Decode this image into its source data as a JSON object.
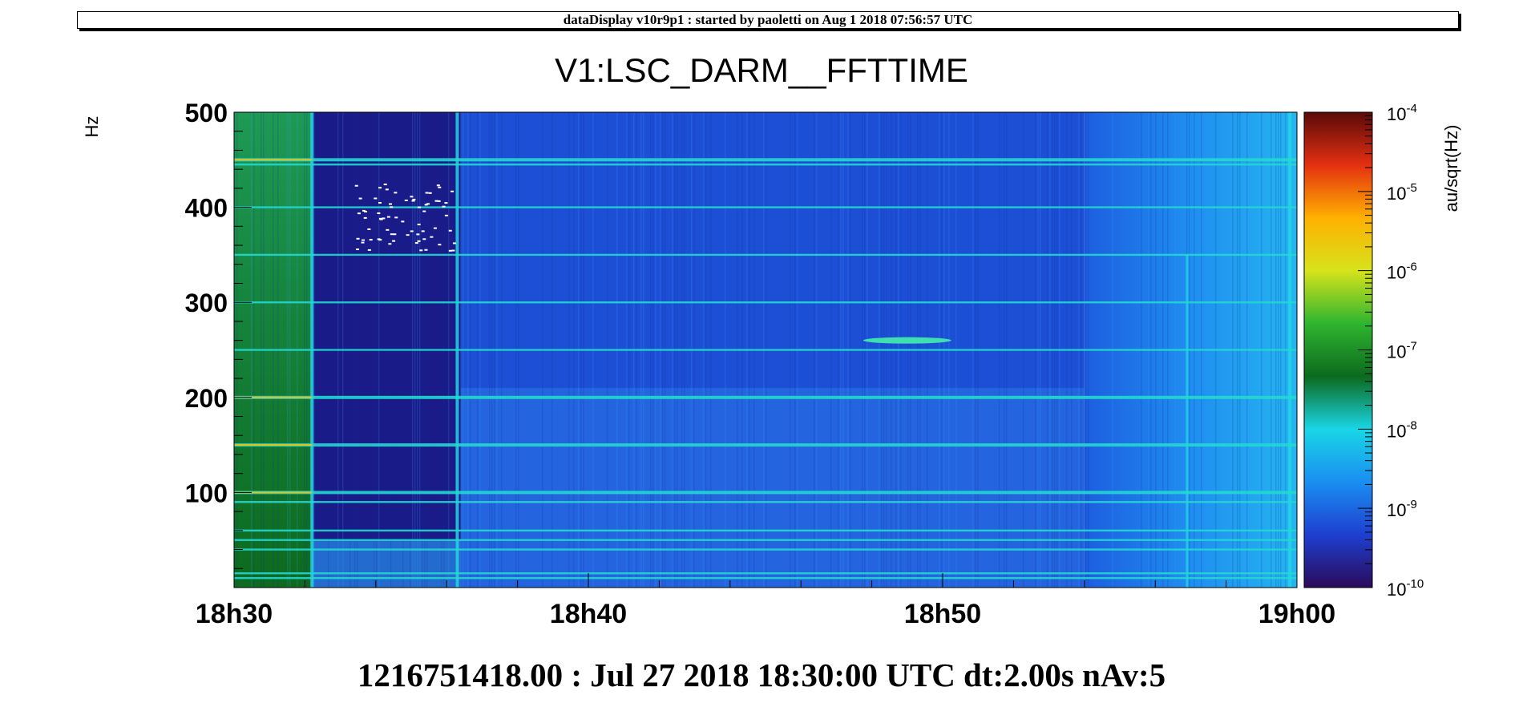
{
  "header": {
    "banner": "dataDisplay v10r9p1 : started by paoletti on Aug  1 2018 07:56:57 UTC"
  },
  "footer": {
    "info": "1216751418.00 : Jul 27 2018 18:30:00 UTC dt:2.00s nAv:5"
  },
  "chart_data": {
    "type": "heatmap",
    "title": "V1:LSC_DARM__FFTTIME",
    "xlabel": "",
    "ylabel": "Hz",
    "zlabel": "au/sqrt(Hz)",
    "x_ticks": [
      "18h30",
      "18h40",
      "18h50",
      "19h00"
    ],
    "x_tick_minutes": [
      0,
      10,
      20,
      30
    ],
    "xlim_minutes": [
      0,
      30
    ],
    "y_ticks": [
      100,
      200,
      300,
      400,
      500
    ],
    "ylim": [
      0,
      500
    ],
    "z_scale": "log",
    "z_ticks": [
      "10^-10",
      "10^-9",
      "10^-8",
      "10^-7",
      "10^-6",
      "10^-5",
      "10^-4"
    ],
    "z_exponents": [
      -10,
      -9,
      -8,
      -7,
      -6,
      -5,
      -4
    ],
    "colormap": [
      "#2b0a5a",
      "#1e3fd0",
      "#1a8ef0",
      "#19d6e6",
      "#0c6a1e",
      "#2fb52f",
      "#d7e31c",
      "#ffb000",
      "#e43010",
      "#5a0a0a"
    ],
    "time_segments_minutes": [
      {
        "start": 0,
        "end": 2.2,
        "level": "green"
      },
      {
        "start": 2.2,
        "end": 6.4,
        "level": "dark-blue"
      },
      {
        "start": 6.4,
        "end": 24.0,
        "level": "blue"
      },
      {
        "start": 24.0,
        "end": 30.0,
        "level": "light-blue"
      }
    ],
    "spectral_lines_hz": [
      10,
      15,
      40,
      50,
      60,
      90,
      100,
      150,
      200,
      250,
      300,
      350,
      400,
      445,
      450
    ]
  }
}
